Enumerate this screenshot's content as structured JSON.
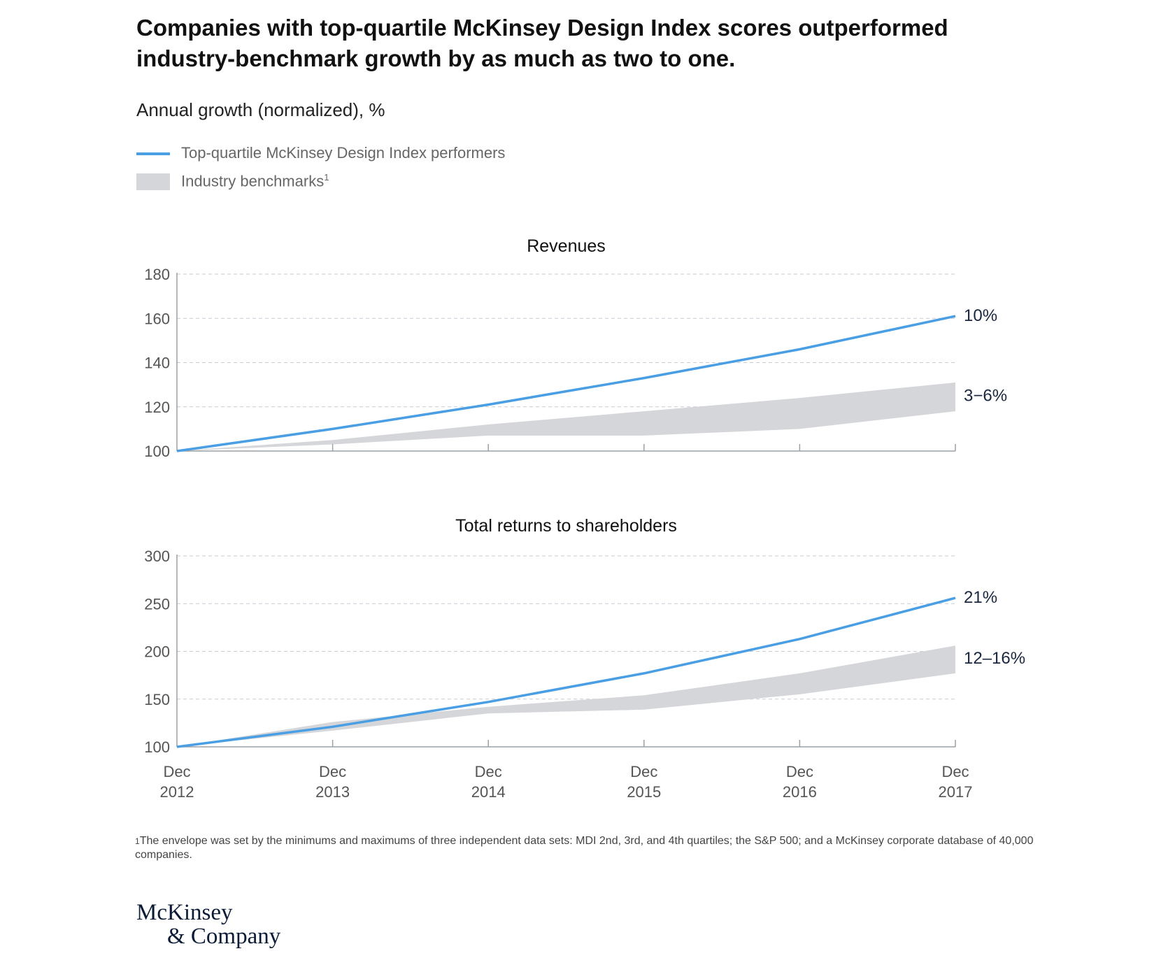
{
  "title": "Companies with top-quartile McKinsey Design Index scores outperformed industry-benchmark growth by as much as two to one.",
  "subtitle": "Annual growth (normalized), %",
  "legend": {
    "line_label": "Top-quartile McKinsey Design Index performers",
    "band_label": "Industry benchmarks",
    "band_footnote_mark": "1"
  },
  "colors": {
    "line": "#4a9ee3",
    "band": "#d4d6d9",
    "grid": "#c7ccd3",
    "axis": "#9aa0a6"
  },
  "chart_data": [
    {
      "type": "line",
      "title": "Revenues",
      "categories": [
        "Dec 2012",
        "Dec 2013",
        "Dec 2014",
        "Dec 2015",
        "Dec 2016",
        "Dec 2017"
      ],
      "x_tick_lines": [
        [
          "Dec",
          "2012"
        ],
        [
          "Dec",
          "2013"
        ],
        [
          "Dec",
          "2014"
        ],
        [
          "Dec",
          "2015"
        ],
        [
          "Dec",
          "2016"
        ],
        [
          "Dec",
          "2017"
        ]
      ],
      "ylim": [
        100,
        180
      ],
      "yticks": [
        100,
        120,
        140,
        160,
        180
      ],
      "series": [
        {
          "name": "Top-quartile McKinsey Design Index performers",
          "values": [
            100,
            110,
            121,
            133,
            146,
            161
          ],
          "end_label": "10%"
        }
      ],
      "band": {
        "name": "Industry benchmarks",
        "lower": [
          100,
          103,
          107,
          107,
          110,
          118
        ],
        "upper": [
          100,
          105,
          112,
          118,
          124,
          131
        ],
        "end_label": "3−6%"
      },
      "grid": true
    },
    {
      "type": "line",
      "title": "Total returns to shareholders",
      "categories": [
        "Dec 2012",
        "Dec 2013",
        "Dec 2014",
        "Dec 2015",
        "Dec 2016",
        "Dec 2017"
      ],
      "x_tick_lines": [
        [
          "Dec",
          "2012"
        ],
        [
          "Dec",
          "2013"
        ],
        [
          "Dec",
          "2014"
        ],
        [
          "Dec",
          "2015"
        ],
        [
          "Dec",
          "2016"
        ],
        [
          "Dec",
          "2017"
        ]
      ],
      "ylim": [
        100,
        300
      ],
      "yticks": [
        100,
        150,
        200,
        250,
        300
      ],
      "series": [
        {
          "name": "Top-quartile McKinsey Design Index performers",
          "values": [
            100,
            121,
            147,
            177,
            213,
            256
          ],
          "end_label": "21%"
        }
      ],
      "band": {
        "name": "Industry benchmarks",
        "lower": [
          100,
          117,
          135,
          139,
          155,
          177
        ],
        "upper": [
          100,
          126,
          142,
          154,
          177,
          206
        ],
        "end_label": "12–16%"
      },
      "grid": true
    }
  ],
  "footnote": {
    "mark": "1",
    "text": "The envelope was set by the minimums and maximums of three independent data sets: MDI 2nd, 3rd, and 4th quartiles; the S&P 500; and a McKinsey corporate database of 40,000 companies."
  },
  "logo": {
    "line1": "McKinsey",
    "line2": "& Company"
  }
}
